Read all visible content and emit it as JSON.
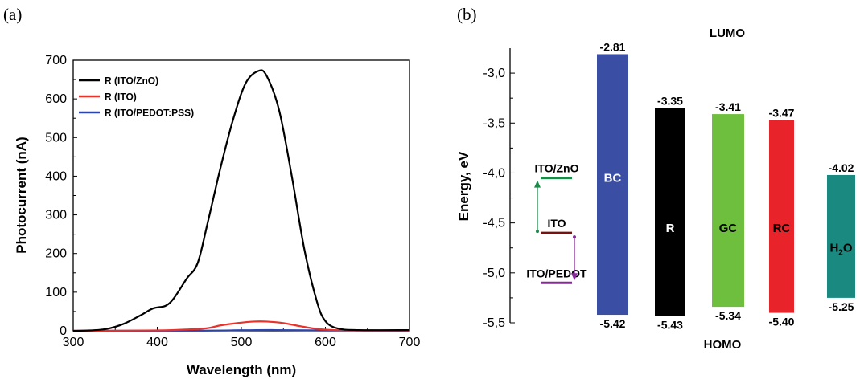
{
  "chart_data": [
    {
      "type": "line",
      "panel_label": "(a)",
      "xlabel": "Wavelength (nm)",
      "ylabel": "Photocurrent (nA)",
      "xlim": [
        300,
        700
      ],
      "ylim": [
        0,
        700
      ],
      "xticks": [
        "300",
        "400",
        "500",
        "600",
        "700"
      ],
      "yticks": [
        "0",
        "100",
        "200",
        "300",
        "400",
        "500",
        "600",
        "700"
      ],
      "legend_position": "top-left",
      "series": [
        {
          "name": "R (ITO/ZnO)",
          "color": "#000000",
          "points": [
            [
              300,
              0
            ],
            [
              320,
              1
            ],
            [
              340,
              5
            ],
            [
              360,
              18
            ],
            [
              380,
              40
            ],
            [
              395,
              58
            ],
            [
              410,
              65
            ],
            [
              420,
              85
            ],
            [
              435,
              135
            ],
            [
              448,
              175
            ],
            [
              460,
              280
            ],
            [
              475,
              420
            ],
            [
              490,
              545
            ],
            [
              505,
              640
            ],
            [
              520,
              672
            ],
            [
              530,
              660
            ],
            [
              545,
              570
            ],
            [
              560,
              400
            ],
            [
              575,
              210
            ],
            [
              590,
              75
            ],
            [
              600,
              25
            ],
            [
              615,
              6
            ],
            [
              640,
              2
            ],
            [
              700,
              2
            ]
          ]
        },
        {
          "name": "R (ITO)",
          "color": "#e8322a",
          "points": [
            [
              300,
              0
            ],
            [
              400,
              1
            ],
            [
              440,
              4
            ],
            [
              460,
              7
            ],
            [
              475,
              14
            ],
            [
              495,
              20
            ],
            [
              515,
              24
            ],
            [
              530,
              24
            ],
            [
              550,
              20
            ],
            [
              570,
              12
            ],
            [
              590,
              5
            ],
            [
              610,
              2
            ],
            [
              650,
              1
            ],
            [
              700,
              1
            ]
          ]
        },
        {
          "name": "R (ITO/PEDOT:PSS)",
          "color": "#2a45b0",
          "points": [
            [
              300,
              0
            ],
            [
              450,
              0.5
            ],
            [
              500,
              1.5
            ],
            [
              540,
              2
            ],
            [
              600,
              1
            ],
            [
              700,
              0.5
            ]
          ]
        }
      ]
    },
    {
      "type": "bar",
      "panel_label": "(b)",
      "ylabel": "Energy, eV",
      "ylim": [
        -5.5,
        -2.75
      ],
      "yticks": [
        "-3,0",
        "-3,5",
        "-4,0",
        "-4,5",
        "-5,0",
        "-5,5"
      ],
      "top_label": "LUMO",
      "bottom_label": "HOMO",
      "bars": [
        {
          "name": "BC",
          "lumo": -2.81,
          "homo": -5.42,
          "lumo_label": "-2.81",
          "homo_label": "-5.42",
          "color": "#3a4fa4",
          "text_color": "#ffffff"
        },
        {
          "name": "R",
          "lumo": -3.35,
          "homo": -5.43,
          "lumo_label": "-3.35",
          "homo_label": "-5.43",
          "color": "#000000",
          "text_color": "#ffffff"
        },
        {
          "name": "GC",
          "lumo": -3.41,
          "homo": -5.34,
          "lumo_label": "-3.41",
          "homo_label": "-5.34",
          "color": "#6fbf3f",
          "text_color": "#000000"
        },
        {
          "name": "RC",
          "lumo": -3.47,
          "homo": -5.4,
          "lumo_label": "-3.47",
          "homo_label": "-5.40",
          "color": "#e8232a",
          "text_color": "#000000"
        },
        {
          "name": "H2O",
          "lumo": -4.02,
          "homo": -5.25,
          "lumo_label": "-4.02",
          "homo_label": "-5.25",
          "color": "#1a8a80",
          "text_color": "#000000"
        }
      ],
      "electrode_levels": [
        {
          "name": "ITO/ZnO",
          "energy": -4.05,
          "color": "#1e8a4a"
        },
        {
          "name": "ITO",
          "energy": -4.6,
          "color": "#7a1010"
        },
        {
          "name": "ITO/PEDOT",
          "energy": -5.1,
          "color": "#8a2a9a"
        }
      ]
    }
  ]
}
